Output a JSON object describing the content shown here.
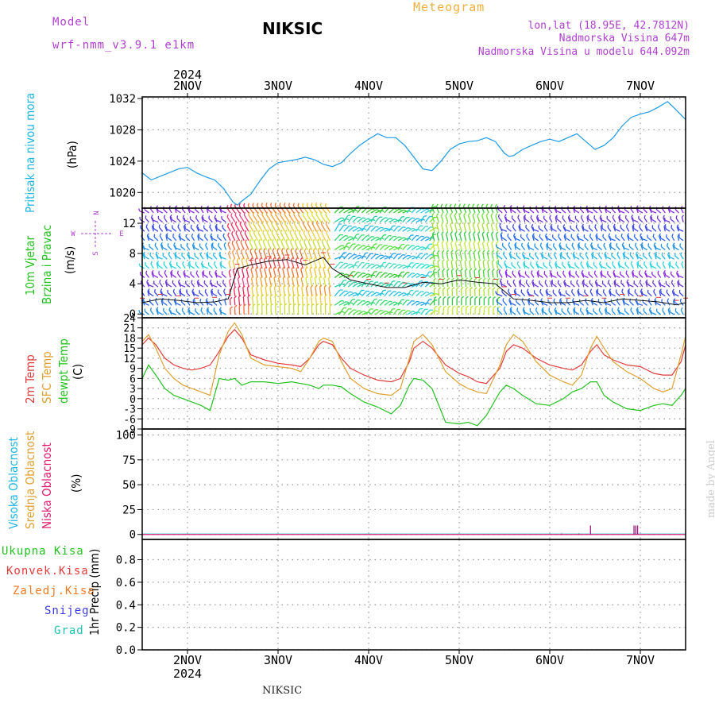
{
  "header": {
    "model_label": "Model",
    "model_name": "wrf-nmm_v3.9.1  e1km",
    "station": "NIKSIC",
    "meteogram": "Meteogram",
    "lonlat": "lon,lat (18.95E, 42.7812N)",
    "altitude": "Nadmorska Visina 647m",
    "model_altitude": "Nadmorska Visina u modelu 644.092m",
    "footer_station": "NIKSIC",
    "watermark": "made by Angel",
    "year": "2024"
  },
  "days": [
    "2NOV",
    "3NOV",
    "4NOV",
    "5NOV",
    "6NOV",
    "7NOV"
  ],
  "colors": {
    "pressure": "#1e9be6",
    "wind_label": "#22c21e",
    "temp2m": "#e23b3b",
    "sfc": "#e0a030",
    "dewpt": "#22c21e",
    "cloud_high": "#1fb6e0",
    "cloud_mid": "#e0a030",
    "cloud_low": "#e0186e",
    "precip_total": "#22c21e",
    "precip_conv": "#e23b3b",
    "precip_frz": "#f07a20",
    "snow": "#3a3ae0",
    "grad": "#1fc0b0",
    "compass": "#b040d0",
    "header_purple": "#b040d0",
    "header_orange": "#f0b040"
  },
  "panel_labels": {
    "pressure": {
      "lines": [
        "Pritisak na nivou mora"
      ],
      "unit": "(hPa)"
    },
    "wind": {
      "lines": [
        "10m Vjetar",
        "Brzina i Pravac"
      ],
      "unit": "(m/s)"
    },
    "temp": {
      "lines": [
        "2m Temp",
        "SFC Temp",
        "dewpt Temp"
      ],
      "unit": "(C)"
    },
    "cloud": {
      "lines": [
        "Visoka Oblacnost",
        "Srednja Oblacnost",
        "Niska Oblacnost"
      ],
      "unit": "(%)"
    },
    "precip": {
      "lines": [
        "Ukupna Kisa",
        "Konvek.Kisa",
        "Zaledj.Kisa",
        "Snijeg",
        "Grad"
      ],
      "unit": "1hr Precip (mm)"
    }
  },
  "compass": {
    "n": "N",
    "s": "S",
    "e": "E",
    "w": "W"
  },
  "chart_data": [
    {
      "type": "line",
      "panel": "pressure",
      "ylabel": "(hPa)",
      "ylim": [
        1018,
        1032.2
      ],
      "yticks": [
        1020,
        1024,
        1028,
        1032
      ],
      "xlim": [
        1.5,
        7.5
      ],
      "x_tick_labels": [
        "2NOV",
        "3NOV",
        "4NOV",
        "5NOV",
        "6NOV",
        "7NOV"
      ],
      "series": [
        {
          "name": "Pritisak na nivou mora",
          "x": [
            1.5,
            1.6,
            1.75,
            1.9,
            2.0,
            2.1,
            2.2,
            2.3,
            2.4,
            2.5,
            2.55,
            2.6,
            2.7,
            2.8,
            2.9,
            3.0,
            3.1,
            3.2,
            3.3,
            3.4,
            3.5,
            3.6,
            3.7,
            3.8,
            3.9,
            4.0,
            4.1,
            4.2,
            4.3,
            4.4,
            4.5,
            4.6,
            4.7,
            4.8,
            4.9,
            5.0,
            5.1,
            5.2,
            5.3,
            5.4,
            5.5,
            5.55,
            5.6,
            5.7,
            5.8,
            5.9,
            6.0,
            6.1,
            6.2,
            6.3,
            6.4,
            6.5,
            6.6,
            6.7,
            6.8,
            6.9,
            7.0,
            7.1,
            7.2,
            7.3,
            7.4,
            7.5
          ],
          "values": [
            1022.5,
            1021.6,
            1022.3,
            1023.0,
            1023.2,
            1022.5,
            1022.0,
            1021.6,
            1020.5,
            1018.8,
            1018.4,
            1018.9,
            1019.8,
            1021.5,
            1023.0,
            1023.8,
            1024.0,
            1024.2,
            1024.5,
            1024.2,
            1023.6,
            1023.3,
            1023.8,
            1025.0,
            1026.0,
            1026.8,
            1027.5,
            1027.0,
            1027.0,
            1026.0,
            1024.5,
            1023.0,
            1022.8,
            1024.0,
            1025.5,
            1026.2,
            1026.5,
            1026.6,
            1027.0,
            1026.5,
            1025.0,
            1024.6,
            1024.7,
            1025.5,
            1026.0,
            1026.5,
            1026.8,
            1026.5,
            1027.0,
            1027.5,
            1026.5,
            1025.5,
            1026.0,
            1027.0,
            1028.5,
            1029.6,
            1030.0,
            1030.3,
            1030.9,
            1031.6,
            1030.5,
            1029.3
          ]
        }
      ]
    },
    {
      "type": "line",
      "panel": "wind",
      "ylabel": "(m/s)",
      "ylim": [
        -0.5,
        14
      ],
      "yticks": [
        0,
        4,
        8,
        12
      ],
      "xlim": [
        1.5,
        7.5
      ],
      "note": "wind barbs coloured by speed",
      "series": [
        {
          "name": "wind speed",
          "x": [
            1.5,
            1.7,
            1.9,
            2.1,
            2.3,
            2.45,
            2.55,
            2.7,
            2.9,
            3.1,
            3.3,
            3.5,
            3.6,
            3.8,
            4.0,
            4.2,
            4.4,
            4.6,
            4.8,
            5.0,
            5.2,
            5.4,
            5.5,
            5.6,
            5.8,
            6.0,
            6.2,
            6.4,
            6.6,
            6.8,
            7.0,
            7.2,
            7.4,
            7.5
          ],
          "values": [
            1.5,
            2.0,
            1.8,
            1.5,
            1.6,
            2.0,
            6.0,
            6.5,
            7.0,
            7.2,
            6.5,
            7.5,
            6.0,
            4.5,
            4.0,
            3.5,
            3.5,
            4.2,
            4.0,
            4.5,
            4.2,
            4.0,
            3.0,
            2.0,
            1.8,
            1.5,
            1.5,
            1.8,
            1.5,
            2.0,
            1.8,
            1.6,
            1.2,
            1.5
          ]
        }
      ]
    },
    {
      "type": "line",
      "panel": "temperature",
      "ylabel": "(C)",
      "ylim": [
        -9,
        24
      ],
      "yticks": [
        -9,
        -6,
        -3,
        0,
        3,
        6,
        9,
        12,
        15,
        18,
        21,
        24
      ],
      "xlim": [
        1.5,
        7.5
      ],
      "series": [
        {
          "name": "2m Temp",
          "x": [
            1.5,
            1.57,
            1.65,
            1.75,
            1.85,
            1.95,
            2.05,
            2.15,
            2.25,
            2.35,
            2.45,
            2.52,
            2.6,
            2.7,
            2.85,
            3.0,
            3.15,
            3.25,
            3.35,
            3.45,
            3.5,
            3.6,
            3.7,
            3.8,
            3.95,
            4.1,
            4.25,
            4.35,
            4.45,
            4.5,
            4.6,
            4.7,
            4.85,
            5.0,
            5.1,
            5.2,
            5.3,
            5.45,
            5.52,
            5.6,
            5.7,
            5.85,
            6.0,
            6.15,
            6.25,
            6.35,
            6.45,
            6.52,
            6.6,
            6.7,
            6.85,
            7.0,
            7.15,
            7.25,
            7.35,
            7.45,
            7.5
          ],
          "values": [
            16,
            18,
            16,
            12,
            10,
            9,
            8.5,
            9,
            10,
            14,
            18.5,
            20.5,
            18,
            13,
            11.5,
            10.5,
            10,
            9.5,
            12,
            16,
            17,
            16,
            12,
            9,
            7,
            5.5,
            5,
            6,
            11,
            15,
            17,
            15,
            10,
            7.5,
            6.5,
            5,
            4.5,
            9,
            14,
            16,
            15,
            12,
            10,
            9,
            8.5,
            10,
            14,
            16,
            13,
            11.5,
            10,
            9.5,
            7.5,
            7,
            7,
            11,
            16
          ]
        },
        {
          "name": "SFC Temp",
          "x": [
            1.5,
            1.57,
            1.65,
            1.75,
            1.85,
            1.95,
            2.05,
            2.15,
            2.25,
            2.35,
            2.45,
            2.52,
            2.6,
            2.7,
            2.85,
            3.0,
            3.15,
            3.25,
            3.35,
            3.45,
            3.5,
            3.6,
            3.7,
            3.8,
            3.95,
            4.1,
            4.25,
            4.35,
            4.45,
            4.5,
            4.6,
            4.7,
            4.85,
            5.0,
            5.1,
            5.2,
            5.3,
            5.45,
            5.52,
            5.6,
            5.7,
            5.85,
            6.0,
            6.15,
            6.25,
            6.35,
            6.45,
            6.52,
            6.6,
            6.7,
            6.85,
            7.0,
            7.15,
            7.25,
            7.35,
            7.45,
            7.5
          ],
          "values": [
            17,
            19,
            15,
            9,
            6,
            4,
            3,
            2,
            1,
            13,
            20,
            22.5,
            19,
            12,
            10,
            9.5,
            9,
            8,
            12,
            17,
            18,
            17,
            11,
            6,
            3,
            1.5,
            1,
            3,
            12,
            17,
            19,
            16,
            8,
            4.5,
            3,
            2,
            1.5,
            10,
            16,
            19,
            17,
            11,
            7,
            5,
            4,
            7,
            15,
            18.5,
            15,
            11,
            8,
            6,
            3,
            2,
            3,
            13,
            18.5
          ]
        },
        {
          "name": "dewpt Temp",
          "x": [
            1.5,
            1.57,
            1.65,
            1.75,
            1.85,
            1.95,
            2.05,
            2.15,
            2.25,
            2.35,
            2.45,
            2.52,
            2.6,
            2.7,
            2.85,
            3.0,
            3.15,
            3.25,
            3.35,
            3.45,
            3.5,
            3.6,
            3.7,
            3.8,
            3.95,
            4.1,
            4.25,
            4.35,
            4.45,
            4.5,
            4.6,
            4.7,
            4.85,
            5.0,
            5.1,
            5.2,
            5.3,
            5.45,
            5.52,
            5.6,
            5.7,
            5.85,
            6.0,
            6.15,
            6.25,
            6.35,
            6.45,
            6.52,
            6.6,
            6.7,
            6.85,
            7.0,
            7.15,
            7.25,
            7.35,
            7.45,
            7.5
          ],
          "values": [
            6,
            10,
            7,
            3,
            1,
            0,
            -1,
            -2,
            -3.5,
            6,
            5.5,
            6,
            4,
            5,
            5,
            4.5,
            5,
            4.5,
            4,
            3,
            4,
            4,
            3.5,
            1.5,
            -1,
            -2.5,
            -4.5,
            -2,
            4,
            6,
            5.5,
            3,
            -7,
            -7.5,
            -7,
            -8,
            -5,
            2,
            4,
            3,
            1,
            -1.5,
            -2,
            0,
            2,
            3,
            5,
            5,
            1,
            -1,
            -3,
            -3.5,
            -2,
            -1.5,
            -2,
            1,
            3
          ]
        }
      ]
    },
    {
      "type": "bar",
      "panel": "cloud",
      "ylabel": "(%)",
      "ylim": [
        -5,
        106
      ],
      "yticks": [
        0,
        25,
        50,
        75,
        100
      ],
      "xlim": [
        1.5,
        7.5
      ],
      "series": [
        {
          "name": "Visoka Oblacnost",
          "x": [],
          "values": []
        },
        {
          "name": "Srednja Oblacnost",
          "x": [],
          "values": []
        },
        {
          "name": "Niska Oblacnost",
          "x": [
            6.13,
            6.32,
            6.45,
            6.93,
            6.95,
            6.97
          ],
          "values": [
            1,
            1,
            9,
            9,
            9,
            9
          ]
        }
      ]
    },
    {
      "type": "bar",
      "panel": "precipitation",
      "ylabel": "1hr Precip (mm)",
      "ylim": [
        0,
        0.98
      ],
      "yticks": [
        0,
        0.2,
        0.4,
        0.6,
        0.8
      ],
      "xlim": [
        1.5,
        7.5
      ],
      "x_tick_labels": [
        "2NOV",
        "3NOV",
        "4NOV",
        "5NOV",
        "6NOV",
        "7NOV"
      ],
      "series": [
        {
          "name": "Ukupna Kisa",
          "x": [],
          "values": []
        },
        {
          "name": "Konvek.Kisa",
          "x": [],
          "values": []
        },
        {
          "name": "Zaledj.Kisa",
          "x": [],
          "values": []
        },
        {
          "name": "Snijeg",
          "x": [],
          "values": []
        },
        {
          "name": "Grad",
          "x": [],
          "values": []
        }
      ]
    }
  ]
}
